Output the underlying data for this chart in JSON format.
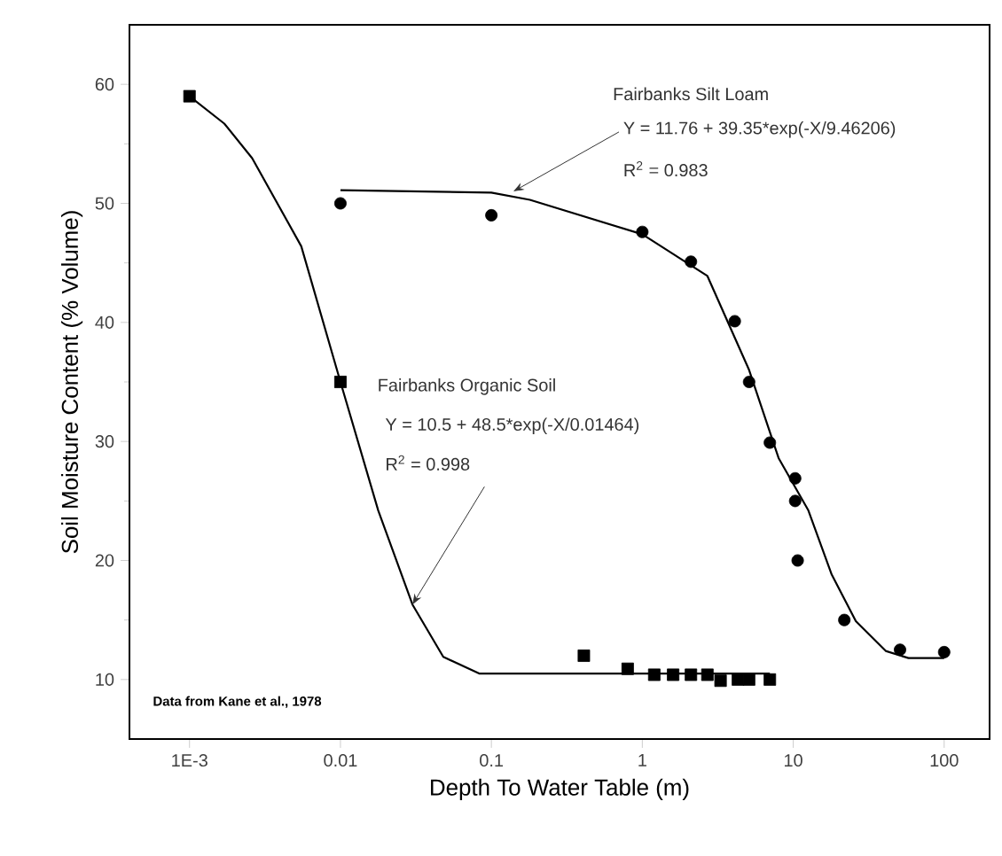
{
  "chart_data": {
    "type": "scatter",
    "xlabel": "Depth To Water Table (m)",
    "ylabel": "Soil Moisture Content (% Volume)",
    "log": "x",
    "grid": false,
    "xlim": [
      0.0004,
      200
    ],
    "ylim": [
      5,
      65
    ],
    "xticks": [
      {
        "value": 0.001,
        "label": "1E-3"
      },
      0.01,
      0.1,
      1,
      10,
      100
    ],
    "yticks": [
      10,
      20,
      30,
      40,
      50,
      60
    ],
    "series": [
      {
        "marker": "square",
        "color": "#000000",
        "x": [
          0.001,
          0.01,
          0.41,
          0.8,
          1.2,
          1.6,
          2.1,
          2.7,
          3.3,
          4.3,
          5.1,
          7.0
        ],
        "values": [
          59,
          35,
          12,
          10.9,
          10.4,
          10.4,
          10.4,
          10.4,
          9.9,
          10,
          10,
          10
        ]
      },
      {
        "marker": "circle",
        "color": "#000000",
        "x": [
          0.01,
          0.1,
          1.0,
          2.1,
          4.1,
          5.1,
          7.0,
          10.3,
          10.3,
          10.7,
          21.8,
          51,
          100
        ],
        "values": [
          50,
          49,
          47.6,
          45.1,
          40.1,
          35,
          29.9,
          26.9,
          25,
          20,
          15,
          12.5,
          12.3
        ]
      },
      {
        "type": "line",
        "marker": "none",
        "color": "#000000",
        "x": [
          0.001,
          0.0017,
          0.0026,
          0.0055,
          0.01,
          0.0178,
          0.03,
          0.048,
          0.083,
          0.2,
          1,
          7
        ],
        "values": [
          59,
          56.7,
          53.8,
          46.4,
          35,
          24.2,
          16.3,
          11.9,
          10.5,
          10.5,
          10.5,
          10.5
        ]
      },
      {
        "type": "line",
        "marker": "none",
        "color": "#000000",
        "x": [
          0.01,
          0.1,
          0.18,
          1.0,
          2.7,
          5.1,
          8,
          12.6,
          18,
          26,
          41,
          58,
          100
        ],
        "values": [
          51.1,
          50.9,
          50.3,
          47.4,
          43.9,
          36,
          28.6,
          24.2,
          18.8,
          14.9,
          12.4,
          11.8,
          11.8
        ]
      }
    ],
    "annotations": [
      "Fairbanks Silt Loam",
      {
        "text": "Y = 11.76 + 39.35*exp(-X/9.46206)",
        "x": 0.14,
        "y": 51
      },
      "R$^{2}$ = 0.983",
      "Fairbanks Organic Soil",
      "Y = 10.5 + 48.5*exp(-X/0.01464)",
      {
        "text": "R$^{2}$ = 0.998",
        "x": 0.03,
        "y": 16.3
      },
      "Data from Kane et al., 1978"
    ]
  }
}
